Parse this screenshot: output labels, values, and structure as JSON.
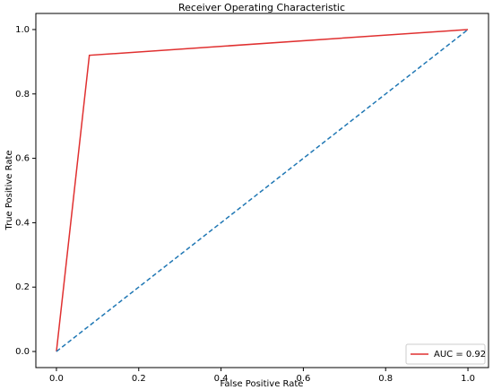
{
  "chart_data": {
    "type": "line",
    "title": "Receiver Operating Characteristic",
    "xlabel": "False Positive Rate",
    "ylabel": "True Positive Rate",
    "series": [
      {
        "name": "AUC = 0.92",
        "color": "#e03030",
        "linestyle": "solid",
        "x": [
          0,
          0.08,
          1
        ],
        "values": [
          0,
          0.92,
          1
        ]
      },
      {
        "color": "#1f77b4",
        "linestyle": "dashed",
        "x": [
          0,
          1
        ],
        "values": [
          0,
          1
        ]
      }
    ],
    "xlim": [
      -0.05,
      1.05
    ],
    "ylim": [
      -0.05,
      1.05
    ],
    "xticks": [
      {
        "value": 0,
        "label": "0.0"
      },
      0.2,
      0.4,
      0.6,
      0.8,
      {
        "value": 1,
        "label": "1.0"
      }
    ],
    "yticks": [
      {
        "value": 0,
        "label": "0.0"
      },
      0.2,
      0.4,
      0.6,
      0.8,
      {
        "value": 1,
        "label": "1.0"
      }
    ],
    "grid": false,
    "legend": "lower right"
  }
}
